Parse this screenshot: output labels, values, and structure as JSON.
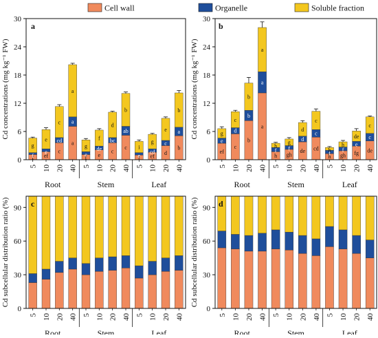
{
  "legend": {
    "items": [
      {
        "label": "Cell wall",
        "color": "#f08a5d"
      },
      {
        "label": "Organelle",
        "color": "#1f4e9b"
      },
      {
        "label": "Soluble fraction",
        "color": "#f3c71f"
      }
    ],
    "position": "top"
  },
  "chart_data": [
    {
      "panel": "a",
      "type": "bar",
      "stacked": true,
      "ylabel": "Cd concentrations (mg kg⁻¹ FW)",
      "ylim": [
        0,
        30
      ],
      "yticks": [
        0,
        6,
        12,
        18,
        24,
        30
      ],
      "categories": [
        "5",
        "10",
        "20",
        "40",
        "5",
        "10",
        "20",
        "40",
        "5",
        "10",
        "20",
        "40"
      ],
      "groups": [
        {
          "label": "Root",
          "start": 0,
          "end": 3
        },
        {
          "label": "Stem",
          "start": 4,
          "end": 7
        },
        {
          "label": "Leaf",
          "start": 8,
          "end": 11
        }
      ],
      "series": [
        {
          "name": "Cell wall",
          "values": [
            1.1,
            1.7,
            3.6,
            7.1,
            1.1,
            2.1,
            3.6,
            5.2,
            1.0,
            1.6,
            3.0,
            5.1
          ],
          "labels": [
            "f",
            "ef",
            "c",
            "a",
            "f",
            "e",
            "c",
            "c",
            "f",
            "ef",
            "d",
            "b"
          ]
        },
        {
          "name": "Organelle",
          "values": [
            0.4,
            0.6,
            1.1,
            2.0,
            0.6,
            0.8,
            1.1,
            1.9,
            0.5,
            0.7,
            1.1,
            1.8
          ],
          "labels": [
            "f",
            "e",
            "cd",
            "a",
            "e",
            "de",
            "bc",
            "ab",
            "e",
            "cd",
            "c",
            "a"
          ]
        },
        {
          "name": "Soluble fraction",
          "values": [
            3.1,
            4.1,
            6.6,
            11.1,
            2.5,
            3.4,
            5.4,
            7.0,
            2.4,
            3.1,
            4.7,
            7.3
          ],
          "labels": [
            "g",
            "e",
            "c",
            "a",
            "g",
            "f",
            "d",
            "b",
            "i",
            "g",
            "e",
            "b"
          ]
        }
      ],
      "error": [
        0.2,
        0.4,
        0.4,
        0.3,
        0.3,
        0.3,
        0.2,
        0.3,
        0.3,
        0.2,
        0.3,
        0.5
      ]
    },
    {
      "panel": "b",
      "type": "bar",
      "stacked": true,
      "ylabel": "Cd concentrations (mg kg⁻¹ FW)",
      "ylim": [
        0,
        30
      ],
      "yticks": [
        0,
        6,
        12,
        18,
        24,
        30
      ],
      "categories": [
        "5",
        "10",
        "20",
        "40",
        "5",
        "10",
        "20",
        "40",
        "5",
        "10",
        "20",
        "40"
      ],
      "groups": [
        {
          "label": "Root",
          "start": 0,
          "end": 3
        },
        {
          "label": "Stem",
          "start": 4,
          "end": 7
        },
        {
          "label": "Leaf",
          "start": 8,
          "end": 11
        }
      ],
      "series": [
        {
          "name": "Cell wall",
          "values": [
            3.5,
            5.5,
            8.3,
            14.2,
            1.7,
            2.2,
            3.8,
            4.8,
            1.3,
            1.9,
            2.9,
            4.0
          ],
          "labels": [
            "ef",
            "c",
            "b",
            "a",
            "h",
            "gh",
            "de",
            "cd",
            "h",
            "gh",
            "fg",
            "de"
          ]
        },
        {
          "name": "Organelle",
          "values": [
            1.1,
            1.3,
            2.2,
            4.5,
            0.9,
            0.8,
            1.2,
            1.6,
            0.7,
            0.8,
            1.0,
            1.6
          ],
          "labels": [
            "e",
            "d",
            "b",
            "a",
            "f",
            "f",
            "d",
            "c",
            "f",
            "f",
            "e",
            "c"
          ]
        },
        {
          "name": "Soluble fraction",
          "values": [
            2.0,
            3.4,
            5.8,
            9.4,
            0.9,
            1.4,
            2.9,
            3.9,
            0.6,
            1.1,
            2.2,
            3.5
          ],
          "labels": [
            "g",
            "c",
            "b",
            "a",
            "h",
            "g",
            "d",
            "c",
            "h",
            "h",
            "de",
            "c"
          ]
        }
      ],
      "error": [
        0.4,
        0.3,
        1.2,
        1.2,
        0.2,
        0.3,
        0.4,
        0.5,
        0.2,
        0.3,
        0.5,
        0.2
      ]
    },
    {
      "panel": "c",
      "type": "bar",
      "stacked": true,
      "ylabel": "Cd subcellular distribution ratio (%)",
      "ylim": [
        0,
        100
      ],
      "yticks": [
        0,
        30,
        60,
        90
      ],
      "categories": [
        "5",
        "10",
        "20",
        "40",
        "5",
        "10",
        "20",
        "40",
        "5",
        "10",
        "20",
        "40"
      ],
      "groups": [
        {
          "label": "Root",
          "start": 0,
          "end": 3
        },
        {
          "label": "Stem",
          "start": 4,
          "end": 7
        },
        {
          "label": "Leaf",
          "start": 8,
          "end": 11
        }
      ],
      "series": [
        {
          "name": "Cell wall",
          "values": [
            23,
            26,
            32,
            35,
            30,
            33,
            34,
            36,
            27,
            30,
            33,
            34
          ]
        },
        {
          "name": "Organelle",
          "values": [
            8,
            9,
            10,
            10,
            10,
            12,
            12,
            11,
            11,
            12,
            12,
            13
          ]
        },
        {
          "name": "Soluble fraction",
          "values": [
            69,
            65,
            58,
            55,
            60,
            55,
            54,
            53,
            62,
            58,
            55,
            53
          ]
        }
      ]
    },
    {
      "panel": "d",
      "type": "bar",
      "stacked": true,
      "ylabel": "Cd subcellular distribution ratio (%)",
      "ylim": [
        0,
        100
      ],
      "yticks": [
        0,
        30,
        60,
        90
      ],
      "categories": [
        "5",
        "10",
        "20",
        "40",
        "5",
        "10",
        "20",
        "40",
        "5",
        "10",
        "20",
        "40"
      ],
      "groups": [
        {
          "label": "Root",
          "start": 0,
          "end": 3
        },
        {
          "label": "Stem",
          "start": 4,
          "end": 7
        },
        {
          "label": "Leaf",
          "start": 8,
          "end": 11
        }
      ],
      "series": [
        {
          "name": "Cell wall",
          "values": [
            54,
            53,
            51,
            51,
            53,
            52,
            49,
            47,
            55,
            53,
            49,
            45
          ]
        },
        {
          "name": "Organelle",
          "values": [
            15,
            13,
            14,
            16,
            17,
            16,
            16,
            15,
            18,
            17,
            16,
            16
          ]
        },
        {
          "name": "Soluble fraction",
          "values": [
            31,
            34,
            35,
            33,
            30,
            32,
            35,
            38,
            27,
            30,
            35,
            39
          ]
        }
      ]
    }
  ]
}
